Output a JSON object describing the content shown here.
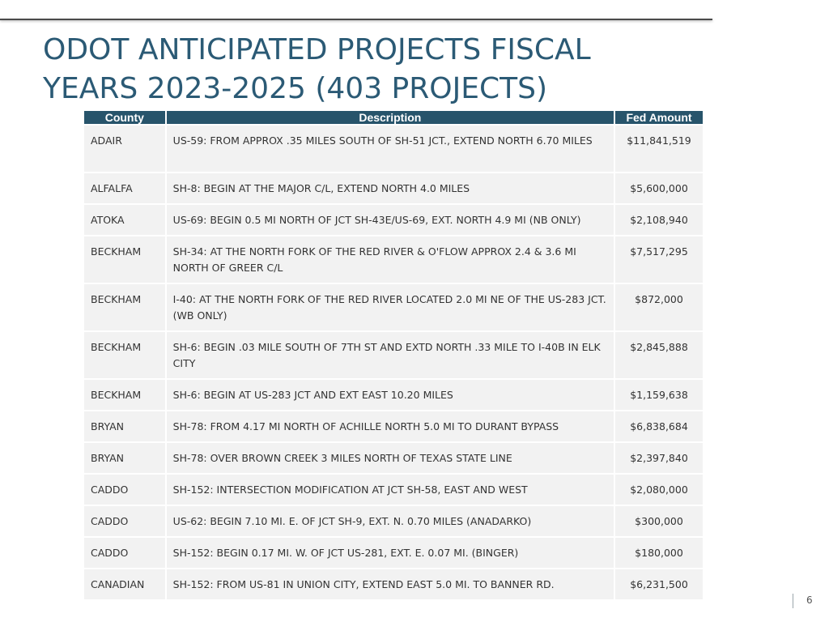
{
  "title": {
    "line1": "ODOT ANTICIPATED PROJECTS FISCAL",
    "line2": "YEARS 2023-2025 (403 PROJECTS)"
  },
  "colors": {
    "title": "#2b5a75",
    "header_bg": "#27546b",
    "row_bg": "#f2f2f2"
  },
  "table": {
    "headers": {
      "county": "County",
      "description": "Description",
      "fed_amount": "Fed Amount"
    },
    "rows": [
      {
        "county": "ADAIR",
        "description": "US-59: FROM APPROX .35 MILES SOUTH OF SH-51 JCT., EXTEND NORTH 6.70 MILES",
        "fed_amount": "$11,841,519"
      },
      {
        "county": "ALFALFA",
        "description": "SH-8: BEGIN AT THE MAJOR C/L, EXTEND NORTH 4.0 MILES",
        "fed_amount": "$5,600,000"
      },
      {
        "county": "ATOKA",
        "description": "US-69: BEGIN 0.5 MI NORTH OF JCT SH-43E/US-69, EXT. NORTH 4.9 MI (NB ONLY)",
        "fed_amount": "$2,108,940"
      },
      {
        "county": "BECKHAM",
        "description": "SH-34: AT THE NORTH FORK OF THE RED RIVER & O'FLOW APPROX 2.4 & 3.6 MI NORTH OF GREER C/L",
        "fed_amount": "$7,517,295"
      },
      {
        "county": "BECKHAM",
        "description": "I-40: AT THE NORTH FORK OF THE RED RIVER LOCATED 2.0 MI NE OF THE US-283 JCT. (WB ONLY)",
        "fed_amount": "$872,000"
      },
      {
        "county": "BECKHAM",
        "description": "SH-6: BEGIN .03 MILE SOUTH OF 7TH ST AND EXTD NORTH .33 MILE TO I-40B IN ELK CITY",
        "fed_amount": "$2,845,888"
      },
      {
        "county": "BECKHAM",
        "description": "SH-6: BEGIN AT US-283 JCT AND EXT EAST 10.20 MILES",
        "fed_amount": "$1,159,638"
      },
      {
        "county": "BRYAN",
        "description": "SH-78: FROM 4.17 MI NORTH OF ACHILLE NORTH 5.0 MI TO DURANT BYPASS",
        "fed_amount": "$6,838,684"
      },
      {
        "county": "BRYAN",
        "description": "SH-78: OVER BROWN CREEK 3 MILES NORTH OF TEXAS STATE LINE",
        "fed_amount": "$2,397,840"
      },
      {
        "county": "CADDO",
        "description": "SH-152: INTERSECTION MODIFICATION AT JCT SH-58, EAST AND WEST",
        "fed_amount": "$2,080,000"
      },
      {
        "county": "CADDO",
        "description": "US-62: BEGIN 7.10 MI. E. OF JCT SH-9, EXT. N. 0.70 MILES (ANADARKO)",
        "fed_amount": "$300,000"
      },
      {
        "county": "CADDO",
        "description": "SH-152: BEGIN 0.17 MI. W. OF JCT US-281, EXT. E. 0.07 MI. (BINGER)",
        "fed_amount": "$180,000"
      },
      {
        "county": "CANADIAN",
        "description": "SH-152: FROM US-81 IN UNION CITY, EXTEND EAST 5.0 MI. TO BANNER RD.",
        "fed_amount": "$6,231,500"
      }
    ]
  },
  "footer": {
    "page_number": "6"
  }
}
